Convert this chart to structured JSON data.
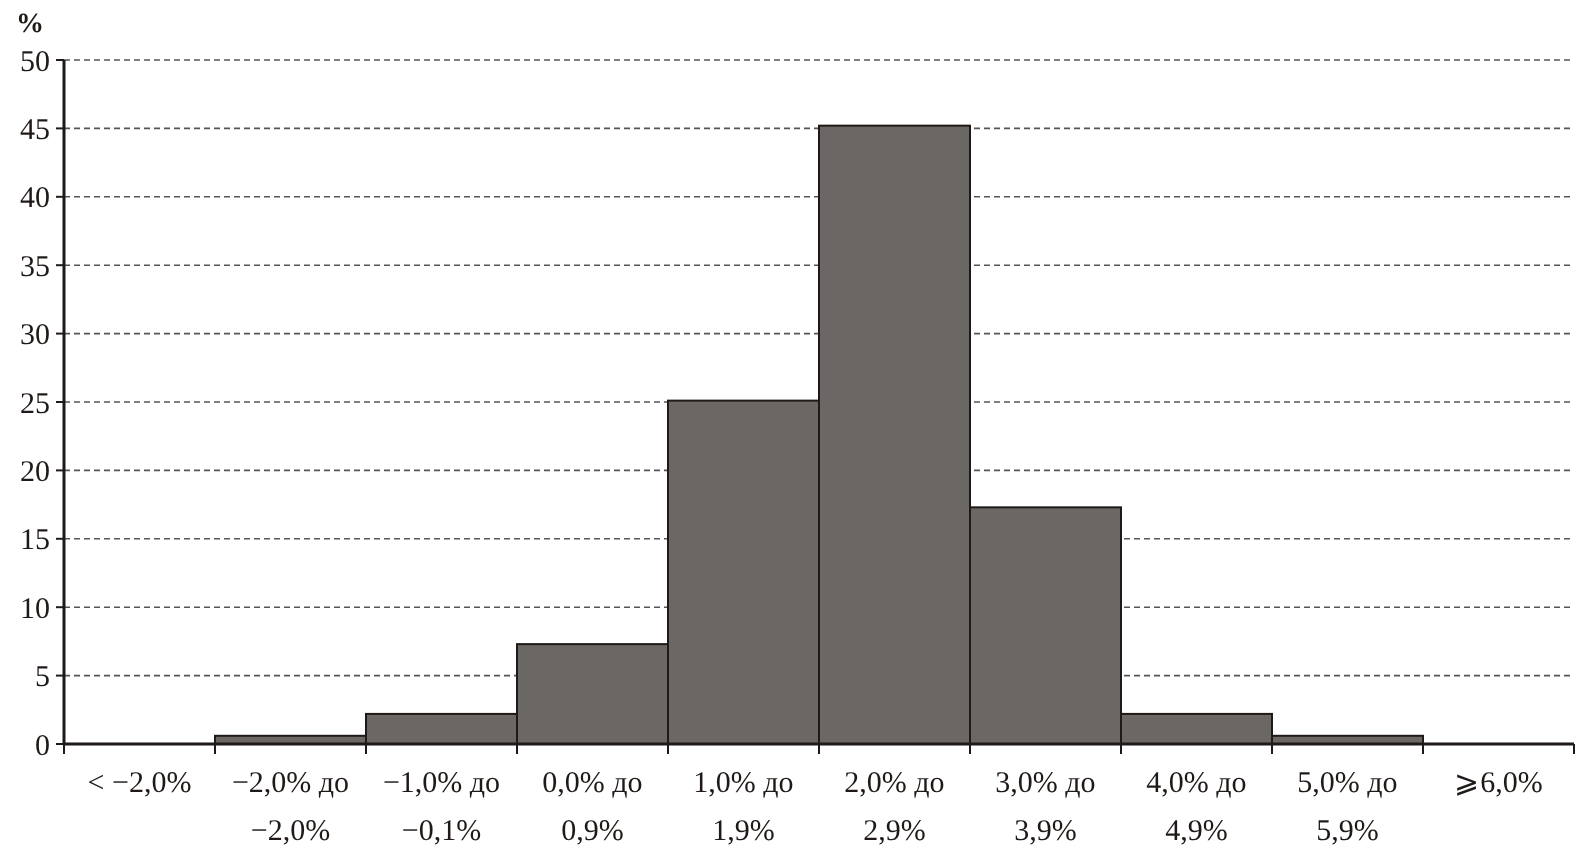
{
  "chart_data": {
    "type": "bar",
    "ylabel": "%",
    "categories": [
      "< −2,0%",
      "−2,0% до −2,0%",
      "−1,0% до −0,1%",
      "0,0% до 0,9%",
      "1,0% до 1,9%",
      "2,0% до 2,9%",
      "3,0% до 3,9%",
      "4,0% до 4,9%",
      "5,0% до 5,9%",
      "⩾6,0%"
    ],
    "values": [
      0,
      0.6,
      2.2,
      7.3,
      25.1,
      45.2,
      17.3,
      2.2,
      0.6,
      0
    ],
    "color": "#6b6764",
    "ylim": [
      0,
      50
    ],
    "yticks": [
      0,
      5,
      10,
      15,
      20,
      25,
      30,
      35,
      40,
      45,
      50
    ],
    "grid": "y"
  }
}
